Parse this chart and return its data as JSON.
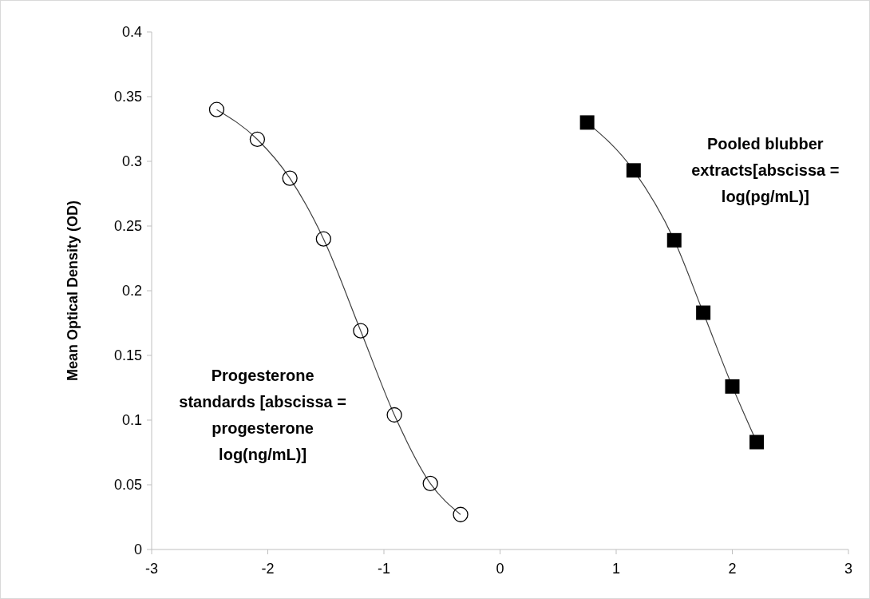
{
  "chart_data": {
    "type": "line",
    "ylabel": "Mean Optical Density (OD)",
    "xlim": [
      -3,
      3
    ],
    "xticks": [
      -3,
      -2,
      -1,
      0,
      1,
      2,
      3
    ],
    "ylim": [
      0,
      0.4
    ],
    "yticks": [
      0,
      0.05,
      0.1,
      0.15,
      0.2,
      0.25,
      0.3,
      0.35,
      0.4
    ],
    "line_style": "solid",
    "series": [
      {
        "name": "Progesterone\nstandards [abscissa =\nprogesterone\nlog(ng/mL)]",
        "marker": "circle",
        "color": "#000000",
        "x": [
          -2.44,
          -2.09,
          -1.81,
          -1.52,
          -1.2,
          -0.91,
          -0.6,
          -0.34
        ],
        "values": [
          0.34,
          0.317,
          0.287,
          0.24,
          0.169,
          0.104,
          0.051,
          0.027
        ]
      },
      {
        "name": "Pooled blubber\nextracts[abscissa =\nlog(pg/mL)]",
        "marker": "square",
        "color": "#000000",
        "x": [
          0.75,
          1.15,
          1.5,
          1.75,
          2.0,
          2.21
        ],
        "values": [
          0.33,
          0.293,
          0.239,
          0.183,
          0.126,
          0.083
        ]
      }
    ]
  }
}
